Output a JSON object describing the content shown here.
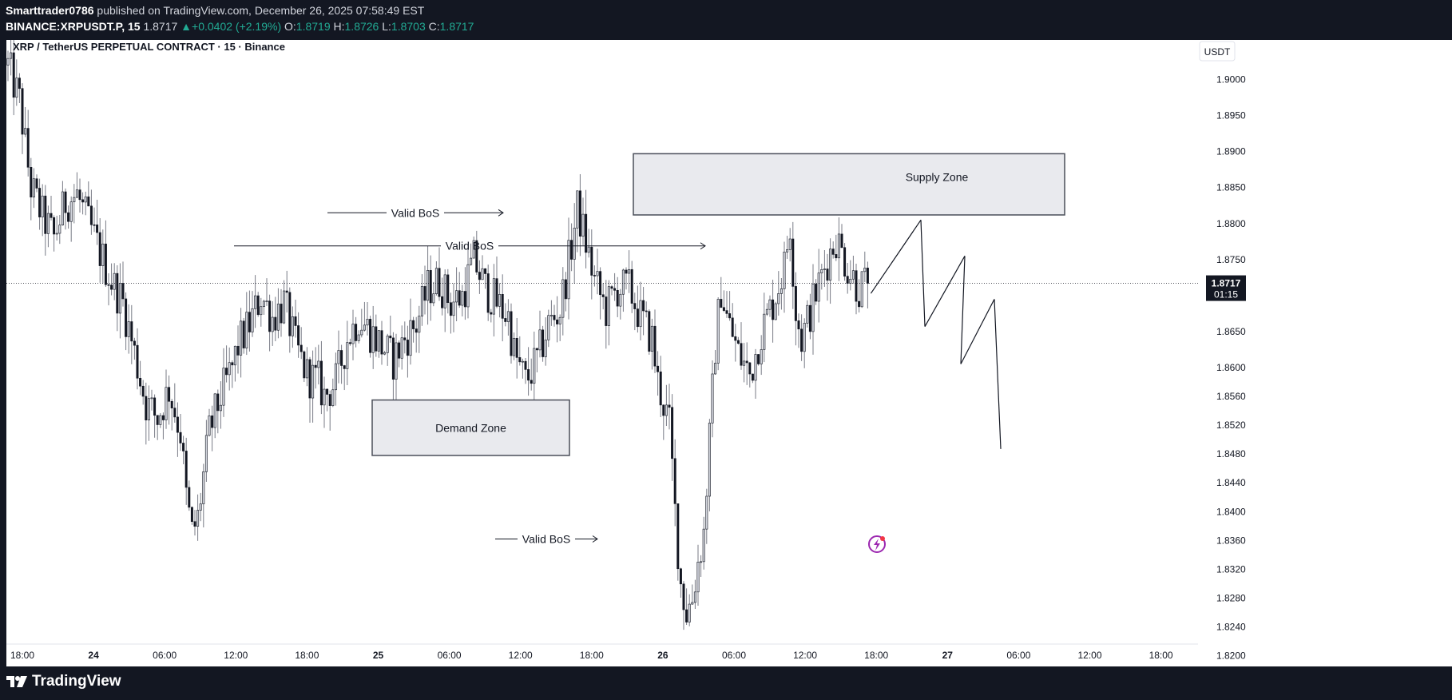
{
  "header": {
    "author": "Smarttrader0786",
    "published_text": "published on TradingView.com, December 26, 2025 07:58:49 EST",
    "symbol_line": "BINANCE:XRPUSDT.P, 15",
    "last": "1.8717",
    "change": "+0.0402 (+2.19%)",
    "o_label": "O:",
    "o": "1.8719",
    "h_label": "H:",
    "h": "1.8726",
    "l_label": "L:",
    "l": "1.8703",
    "c_label": "C:",
    "c": "1.8717"
  },
  "chart_data": {
    "type": "candlestick",
    "title": "XRP / TetherUS PERPETUAL CONTRACT · 15 · Binance",
    "currency": "USDT",
    "last_price": 1.8717,
    "countdown": "01:15",
    "ylim": [
      1.8185,
      1.9055
    ],
    "y_ticks": [
      1.9,
      1.895,
      1.89,
      1.885,
      1.88,
      1.875,
      1.865,
      1.86,
      1.856,
      1.852,
      1.848,
      1.844,
      1.84,
      1.836,
      1.832,
      1.828,
      1.824,
      1.82
    ],
    "y_tick_labels": [
      "1.9000",
      "1.8950",
      "1.8900",
      "1.8850",
      "1.8800",
      "1.8750",
      "1.8650",
      "1.8600",
      "1.8560",
      "1.8520",
      "1.8480",
      "1.8440",
      "1.8400",
      "1.8360",
      "1.8320",
      "1.8280",
      "1.8240",
      "1.8200"
    ],
    "x_ticks": [
      "18:00",
      "24",
      "06:00",
      "12:00",
      "18:00",
      "25",
      "06:00",
      "12:00",
      "18:00",
      "26",
      "06:00",
      "12:00",
      "18:00",
      "27",
      "06:00",
      "12:00",
      "18:00"
    ],
    "price_path": [
      [
        0,
        1.902
      ],
      [
        4,
        1.897
      ],
      [
        8,
        1.885
      ],
      [
        12,
        1.881
      ],
      [
        16,
        1.878
      ],
      [
        20,
        1.883
      ],
      [
        24,
        1.884
      ],
      [
        28,
        1.88
      ],
      [
        32,
        1.876
      ],
      [
        36,
        1.872
      ],
      [
        40,
        1.869
      ],
      [
        44,
        1.862
      ],
      [
        48,
        1.855
      ],
      [
        52,
        1.853
      ],
      [
        56,
        1.857
      ],
      [
        60,
        1.851
      ],
      [
        62,
        1.842
      ],
      [
        64,
        1.837
      ],
      [
        66,
        1.839
      ],
      [
        70,
        1.851
      ],
      [
        74,
        1.856
      ],
      [
        78,
        1.86
      ],
      [
        80,
        1.863
      ],
      [
        84,
        1.866
      ],
      [
        88,
        1.87
      ],
      [
        92,
        1.867
      ],
      [
        96,
        1.869
      ],
      [
        100,
        1.863
      ],
      [
        104,
        1.859
      ],
      [
        108,
        1.858
      ],
      [
        110,
        1.856
      ],
      [
        114,
        1.858
      ],
      [
        118,
        1.864
      ],
      [
        122,
        1.867
      ],
      [
        126,
        1.865
      ],
      [
        130,
        1.863
      ],
      [
        134,
        1.861
      ],
      [
        138,
        1.864
      ],
      [
        142,
        1.866
      ],
      [
        146,
        1.871
      ],
      [
        150,
        1.872
      ],
      [
        154,
        1.869
      ],
      [
        158,
        1.87
      ],
      [
        162,
        1.875
      ],
      [
        166,
        1.871
      ],
      [
        170,
        1.869
      ],
      [
        174,
        1.867
      ],
      [
        176,
        1.862
      ],
      [
        180,
        1.858
      ],
      [
        184,
        1.861
      ],
      [
        188,
        1.866
      ],
      [
        192,
        1.868
      ],
      [
        196,
        1.877
      ],
      [
        198,
        1.882
      ],
      [
        200,
        1.879
      ],
      [
        204,
        1.872
      ],
      [
        208,
        1.868
      ],
      [
        212,
        1.871
      ],
      [
        216,
        1.871
      ],
      [
        220,
        1.867
      ],
      [
        224,
        1.864
      ],
      [
        226,
        1.858
      ],
      [
        230,
        1.852
      ],
      [
        232,
        1.84
      ],
      [
        234,
        1.83
      ],
      [
        236,
        1.826
      ],
      [
        238,
        1.828
      ],
      [
        240,
        1.833
      ],
      [
        242,
        1.837
      ],
      [
        246,
        1.863
      ],
      [
        248,
        1.871
      ],
      [
        250,
        1.867
      ],
      [
        254,
        1.862
      ],
      [
        258,
        1.859
      ],
      [
        262,
        1.865
      ],
      [
        266,
        1.869
      ],
      [
        270,
        1.874
      ],
      [
        272,
        1.88
      ],
      [
        274,
        1.868
      ],
      [
        276,
        1.864
      ],
      [
        280,
        1.869
      ],
      [
        284,
        1.874
      ],
      [
        288,
        1.878
      ],
      [
        292,
        1.874
      ],
      [
        296,
        1.871
      ],
      [
        299,
        1.8717
      ]
    ],
    "projection": [
      [
        1.8703,
        1.8805
      ],
      [
        1.8805,
        1.8657
      ],
      [
        1.8657,
        1.8755
      ],
      [
        1.8755,
        1.8605
      ],
      [
        1.8605,
        1.8695
      ],
      [
        1.8695,
        1.8487
      ]
    ],
    "annotations": [
      {
        "text": "Supply Zone",
        "type": "zone",
        "price_top": 1.8897,
        "price_bottom": 1.8812
      },
      {
        "text": "Demand Zone",
        "type": "zone",
        "price_top": 1.8555,
        "price_bottom": 1.8478
      },
      {
        "text": "Valid BoS",
        "type": "arrow",
        "price": 1.8769
      },
      {
        "text": "Valid BoS",
        "type": "arrow",
        "price": 1.8815
      },
      {
        "text": "Valid BoS",
        "type": "arrow",
        "price": 1.8362
      }
    ]
  },
  "footer": {
    "logo_text": "TradingView",
    "accent_color": "#9c27b0"
  }
}
